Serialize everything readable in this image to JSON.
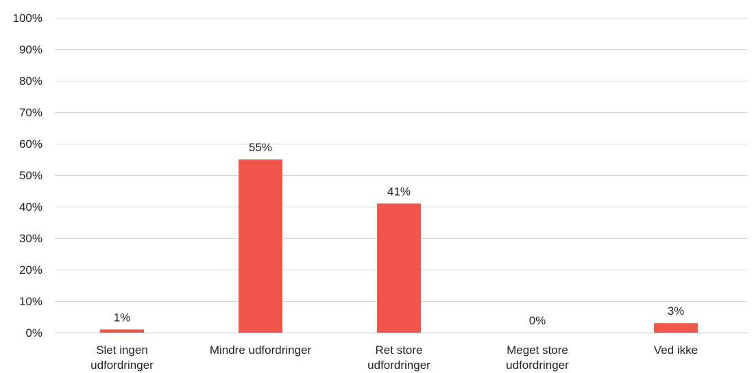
{
  "chart_data": {
    "type": "bar",
    "title": "",
    "xlabel": "",
    "ylabel": "",
    "categories": [
      [
        "Slet ingen",
        "udfordringer"
      ],
      [
        "Mindre udfordringer"
      ],
      [
        "Ret store",
        "udfordringer"
      ],
      [
        "Meget store",
        "udfordringer"
      ],
      [
        "Ved ikke"
      ]
    ],
    "values": [
      1,
      55,
      41,
      0,
      3
    ],
    "data_labels": [
      "1%",
      "55%",
      "41%",
      "0%",
      "3%"
    ],
    "ylim": [
      0,
      100
    ],
    "yticks": [
      0,
      10,
      20,
      30,
      40,
      50,
      60,
      70,
      80,
      90,
      100
    ],
    "ytick_labels": [
      "0%",
      "10%",
      "20%",
      "30%",
      "40%",
      "50%",
      "60%",
      "70%",
      "80%",
      "90%",
      "100%"
    ],
    "grid": true,
    "legend": "none",
    "bar_color": "#f0564a"
  }
}
